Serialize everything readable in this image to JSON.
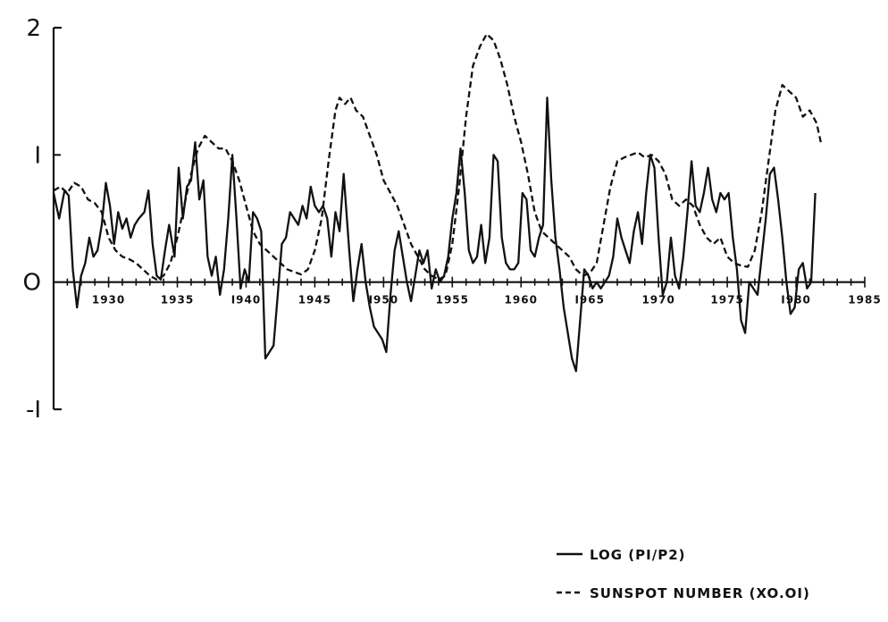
{
  "chart_data": {
    "type": "line",
    "title": "",
    "xlabel": "",
    "ylabel": "",
    "xlim": [
      1926,
      1985
    ],
    "ylim": [
      -1,
      2
    ],
    "grid": false,
    "legend_position": "bottom-right",
    "y_ticks": [
      {
        "value": 2,
        "label": "2"
      },
      {
        "value": 1,
        "label": "I"
      },
      {
        "value": 0,
        "label": "O"
      },
      {
        "value": -1,
        "label": "-I"
      }
    ],
    "x_tick_labels": [
      {
        "value": 1930,
        "label": "1930"
      },
      {
        "value": 1935,
        "label": "1935"
      },
      {
        "value": 1940,
        "label": "I940"
      },
      {
        "value": 1945,
        "label": "1945"
      },
      {
        "value": 1950,
        "label": "I950"
      },
      {
        "value": 1955,
        "label": "1955"
      },
      {
        "value": 1960,
        "label": "1960"
      },
      {
        "value": 1965,
        "label": "I965"
      },
      {
        "value": 1970,
        "label": "1970"
      },
      {
        "value": 1975,
        "label": "1975"
      },
      {
        "value": 1980,
        "label": "I980"
      },
      {
        "value": 1985,
        "label": "1985"
      }
    ],
    "series": [
      {
        "name": "LOG (PI/P2)",
        "style": "solid",
        "color": "#111111",
        "points": [
          [
            1926.0,
            0.7
          ],
          [
            1926.4,
            0.5
          ],
          [
            1926.8,
            0.72
          ],
          [
            1927.1,
            0.68
          ],
          [
            1927.4,
            0.1
          ],
          [
            1927.7,
            -0.2
          ],
          [
            1928.0,
            0.05
          ],
          [
            1928.3,
            0.15
          ],
          [
            1928.6,
            0.35
          ],
          [
            1928.9,
            0.2
          ],
          [
            1929.2,
            0.25
          ],
          [
            1929.5,
            0.45
          ],
          [
            1929.8,
            0.78
          ],
          [
            1930.1,
            0.6
          ],
          [
            1930.4,
            0.3
          ],
          [
            1930.7,
            0.55
          ],
          [
            1931.0,
            0.42
          ],
          [
            1931.3,
            0.5
          ],
          [
            1931.6,
            0.35
          ],
          [
            1931.9,
            0.45
          ],
          [
            1932.2,
            0.5
          ],
          [
            1932.6,
            0.55
          ],
          [
            1932.9,
            0.72
          ],
          [
            1933.2,
            0.3
          ],
          [
            1933.5,
            0.05
          ],
          [
            1933.8,
            0.02
          ],
          [
            1934.1,
            0.25
          ],
          [
            1934.4,
            0.45
          ],
          [
            1934.8,
            0.2
          ],
          [
            1935.1,
            0.9
          ],
          [
            1935.4,
            0.5
          ],
          [
            1935.7,
            0.75
          ],
          [
            1936.0,
            0.8
          ],
          [
            1936.3,
            1.1
          ],
          [
            1936.6,
            0.65
          ],
          [
            1936.9,
            0.8
          ],
          [
            1937.2,
            0.2
          ],
          [
            1937.5,
            0.05
          ],
          [
            1937.8,
            0.2
          ],
          [
            1938.1,
            -0.1
          ],
          [
            1938.4,
            0.1
          ],
          [
            1938.7,
            0.5
          ],
          [
            1939.0,
            1.0
          ],
          [
            1939.3,
            0.5
          ],
          [
            1939.6,
            -0.05
          ],
          [
            1939.9,
            0.1
          ],
          [
            1940.2,
            0.0
          ],
          [
            1940.5,
            0.55
          ],
          [
            1940.8,
            0.5
          ],
          [
            1941.1,
            0.4
          ],
          [
            1941.4,
            -0.6
          ],
          [
            1941.7,
            -0.55
          ],
          [
            1942.0,
            -0.5
          ],
          [
            1942.3,
            -0.1
          ],
          [
            1942.6,
            0.3
          ],
          [
            1942.9,
            0.35
          ],
          [
            1943.2,
            0.55
          ],
          [
            1943.5,
            0.5
          ],
          [
            1943.8,
            0.45
          ],
          [
            1944.1,
            0.6
          ],
          [
            1944.4,
            0.5
          ],
          [
            1944.7,
            0.75
          ],
          [
            1945.0,
            0.6
          ],
          [
            1945.3,
            0.55
          ],
          [
            1945.6,
            0.6
          ],
          [
            1945.9,
            0.5
          ],
          [
            1946.2,
            0.2
          ],
          [
            1946.5,
            0.55
          ],
          [
            1946.8,
            0.4
          ],
          [
            1947.1,
            0.85
          ],
          [
            1947.5,
            0.25
          ],
          [
            1947.8,
            -0.15
          ],
          [
            1948.1,
            0.1
          ],
          [
            1948.4,
            0.3
          ],
          [
            1948.7,
            0.0
          ],
          [
            1949.0,
            -0.2
          ],
          [
            1949.3,
            -0.35
          ],
          [
            1949.6,
            -0.4
          ],
          [
            1949.9,
            -0.45
          ],
          [
            1950.2,
            -0.55
          ],
          [
            1950.5,
            -0.1
          ],
          [
            1950.8,
            0.25
          ],
          [
            1951.1,
            0.4
          ],
          [
            1951.4,
            0.2
          ],
          [
            1951.7,
            0.0
          ],
          [
            1952.0,
            -0.15
          ],
          [
            1952.3,
            0.05
          ],
          [
            1952.6,
            0.25
          ],
          [
            1952.9,
            0.15
          ],
          [
            1953.2,
            0.25
          ],
          [
            1953.5,
            -0.05
          ],
          [
            1953.8,
            0.1
          ],
          [
            1954.1,
            0.0
          ],
          [
            1954.4,
            0.05
          ],
          [
            1954.7,
            0.2
          ],
          [
            1955.0,
            0.5
          ],
          [
            1955.3,
            0.7
          ],
          [
            1955.6,
            1.05
          ],
          [
            1955.9,
            0.7
          ],
          [
            1956.2,
            0.25
          ],
          [
            1956.5,
            0.15
          ],
          [
            1956.8,
            0.2
          ],
          [
            1957.1,
            0.45
          ],
          [
            1957.4,
            0.15
          ],
          [
            1957.7,
            0.35
          ],
          [
            1958.0,
            1.0
          ],
          [
            1958.3,
            0.95
          ],
          [
            1958.6,
            0.35
          ],
          [
            1958.9,
            0.15
          ],
          [
            1959.2,
            0.1
          ],
          [
            1959.5,
            0.1
          ],
          [
            1959.8,
            0.15
          ],
          [
            1960.1,
            0.7
          ],
          [
            1960.4,
            0.65
          ],
          [
            1960.7,
            0.25
          ],
          [
            1961.0,
            0.2
          ],
          [
            1961.3,
            0.35
          ],
          [
            1961.6,
            0.45
          ],
          [
            1961.9,
            1.45
          ],
          [
            1962.2,
            0.8
          ],
          [
            1962.5,
            0.35
          ],
          [
            1962.8,
            0.1
          ],
          [
            1963.1,
            -0.2
          ],
          [
            1963.4,
            -0.4
          ],
          [
            1963.7,
            -0.6
          ],
          [
            1964.0,
            -0.7
          ],
          [
            1964.3,
            -0.3
          ],
          [
            1964.6,
            0.1
          ],
          [
            1964.9,
            0.05
          ],
          [
            1965.2,
            -0.05
          ],
          [
            1965.5,
            0.0
          ],
          [
            1965.8,
            -0.05
          ],
          [
            1966.1,
            0.0
          ],
          [
            1966.4,
            0.05
          ],
          [
            1966.7,
            0.2
          ],
          [
            1967.0,
            0.5
          ],
          [
            1967.3,
            0.35
          ],
          [
            1967.6,
            0.25
          ],
          [
            1967.9,
            0.15
          ],
          [
            1968.2,
            0.4
          ],
          [
            1968.5,
            0.55
          ],
          [
            1968.8,
            0.3
          ],
          [
            1969.1,
            0.7
          ],
          [
            1969.4,
            1.0
          ],
          [
            1969.7,
            0.9
          ],
          [
            1970.0,
            0.35
          ],
          [
            1970.3,
            -0.1
          ],
          [
            1970.6,
            0.0
          ],
          [
            1970.9,
            0.35
          ],
          [
            1971.2,
            0.05
          ],
          [
            1971.5,
            -0.05
          ],
          [
            1971.8,
            0.2
          ],
          [
            1972.1,
            0.55
          ],
          [
            1972.4,
            0.95
          ],
          [
            1972.7,
            0.6
          ],
          [
            1973.0,
            0.55
          ],
          [
            1973.3,
            0.7
          ],
          [
            1973.6,
            0.9
          ],
          [
            1973.9,
            0.65
          ],
          [
            1974.2,
            0.55
          ],
          [
            1974.5,
            0.7
          ],
          [
            1974.8,
            0.65
          ],
          [
            1975.1,
            0.7
          ],
          [
            1975.4,
            0.35
          ],
          [
            1975.7,
            0.1
          ],
          [
            1976.0,
            -0.3
          ],
          [
            1976.3,
            -0.4
          ],
          [
            1976.6,
            0.0
          ],
          [
            1976.9,
            -0.05
          ],
          [
            1977.2,
            -0.1
          ],
          [
            1977.5,
            0.2
          ],
          [
            1977.8,
            0.5
          ],
          [
            1978.1,
            0.85
          ],
          [
            1978.4,
            0.9
          ],
          [
            1978.7,
            0.65
          ],
          [
            1979.0,
            0.35
          ],
          [
            1979.3,
            0.0
          ],
          [
            1979.6,
            -0.25
          ],
          [
            1979.9,
            -0.2
          ],
          [
            1980.2,
            0.1
          ],
          [
            1980.5,
            0.15
          ],
          [
            1980.8,
            -0.05
          ],
          [
            1981.1,
            0.0
          ],
          [
            1981.4,
            0.7
          ]
        ]
      },
      {
        "name": "SUNSPOT NUMBER (XO.OI)",
        "style": "dashed",
        "color": "#111111",
        "points": [
          [
            1926.0,
            0.72
          ],
          [
            1926.5,
            0.75
          ],
          [
            1927.0,
            0.7
          ],
          [
            1927.5,
            0.78
          ],
          [
            1928.0,
            0.75
          ],
          [
            1928.5,
            0.65
          ],
          [
            1929.0,
            0.62
          ],
          [
            1929.5,
            0.55
          ],
          [
            1930.0,
            0.35
          ],
          [
            1930.5,
            0.25
          ],
          [
            1931.0,
            0.2
          ],
          [
            1931.5,
            0.18
          ],
          [
            1932.0,
            0.15
          ],
          [
            1932.5,
            0.1
          ],
          [
            1933.0,
            0.05
          ],
          [
            1933.5,
            0.02
          ],
          [
            1934.0,
            0.05
          ],
          [
            1934.5,
            0.15
          ],
          [
            1935.0,
            0.35
          ],
          [
            1935.5,
            0.6
          ],
          [
            1936.0,
            0.85
          ],
          [
            1936.5,
            1.05
          ],
          [
            1937.0,
            1.15
          ],
          [
            1937.5,
            1.1
          ],
          [
            1938.0,
            1.05
          ],
          [
            1938.5,
            1.05
          ],
          [
            1939.0,
            0.95
          ],
          [
            1939.5,
            0.8
          ],
          [
            1940.0,
            0.6
          ],
          [
            1940.5,
            0.4
          ],
          [
            1941.0,
            0.3
          ],
          [
            1941.5,
            0.25
          ],
          [
            1942.0,
            0.2
          ],
          [
            1942.5,
            0.15
          ],
          [
            1943.0,
            0.1
          ],
          [
            1943.5,
            0.08
          ],
          [
            1944.0,
            0.06
          ],
          [
            1944.5,
            0.1
          ],
          [
            1945.0,
            0.25
          ],
          [
            1945.5,
            0.5
          ],
          [
            1946.0,
            0.95
          ],
          [
            1946.5,
            1.35
          ],
          [
            1946.8,
            1.45
          ],
          [
            1947.2,
            1.4
          ],
          [
            1947.6,
            1.45
          ],
          [
            1948.0,
            1.35
          ],
          [
            1948.5,
            1.3
          ],
          [
            1949.0,
            1.15
          ],
          [
            1949.5,
            1.0
          ],
          [
            1950.0,
            0.8
          ],
          [
            1950.5,
            0.7
          ],
          [
            1951.0,
            0.6
          ],
          [
            1951.5,
            0.45
          ],
          [
            1952.0,
            0.3
          ],
          [
            1952.5,
            0.2
          ],
          [
            1953.0,
            0.1
          ],
          [
            1953.5,
            0.05
          ],
          [
            1954.0,
            0.02
          ],
          [
            1954.5,
            0.05
          ],
          [
            1955.0,
            0.3
          ],
          [
            1955.5,
            0.75
          ],
          [
            1956.0,
            1.3
          ],
          [
            1956.5,
            1.7
          ],
          [
            1957.0,
            1.85
          ],
          [
            1957.5,
            1.95
          ],
          [
            1958.0,
            1.9
          ],
          [
            1958.5,
            1.75
          ],
          [
            1959.0,
            1.55
          ],
          [
            1959.5,
            1.3
          ],
          [
            1960.0,
            1.1
          ],
          [
            1960.5,
            0.85
          ],
          [
            1961.0,
            0.55
          ],
          [
            1961.5,
            0.4
          ],
          [
            1962.0,
            0.35
          ],
          [
            1962.5,
            0.3
          ],
          [
            1963.0,
            0.25
          ],
          [
            1963.5,
            0.2
          ],
          [
            1964.0,
            0.1
          ],
          [
            1964.5,
            0.05
          ],
          [
            1965.0,
            0.07
          ],
          [
            1965.5,
            0.15
          ],
          [
            1966.0,
            0.45
          ],
          [
            1966.5,
            0.75
          ],
          [
            1967.0,
            0.95
          ],
          [
            1967.5,
            0.98
          ],
          [
            1968.0,
            1.0
          ],
          [
            1968.5,
            1.02
          ],
          [
            1969.0,
            0.98
          ],
          [
            1969.5,
            1.0
          ],
          [
            1970.0,
            0.95
          ],
          [
            1970.5,
            0.85
          ],
          [
            1971.0,
            0.65
          ],
          [
            1971.5,
            0.6
          ],
          [
            1972.0,
            0.65
          ],
          [
            1972.5,
            0.6
          ],
          [
            1973.0,
            0.45
          ],
          [
            1973.5,
            0.35
          ],
          [
            1974.0,
            0.3
          ],
          [
            1974.5,
            0.35
          ],
          [
            1975.0,
            0.2
          ],
          [
            1975.5,
            0.15
          ],
          [
            1976.0,
            0.13
          ],
          [
            1976.5,
            0.12
          ],
          [
            1977.0,
            0.25
          ],
          [
            1977.5,
            0.55
          ],
          [
            1978.0,
            0.95
          ],
          [
            1978.5,
            1.35
          ],
          [
            1979.0,
            1.55
          ],
          [
            1979.5,
            1.5
          ],
          [
            1980.0,
            1.45
          ],
          [
            1980.5,
            1.3
          ],
          [
            1981.0,
            1.35
          ],
          [
            1981.5,
            1.25
          ],
          [
            1981.8,
            1.1
          ]
        ]
      }
    ]
  }
}
